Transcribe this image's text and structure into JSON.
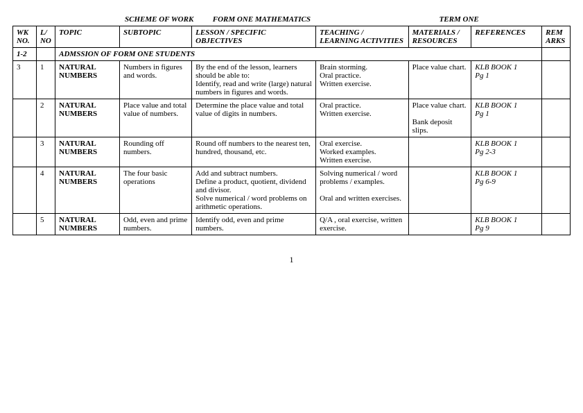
{
  "header": {
    "scheme_of_work": "SCHEME  OF  WORK",
    "form_one_math": "FORM  ONE  MATHEMATICS",
    "term_one": "TERM ONE"
  },
  "columns": {
    "wk_no": "WK NO.",
    "l_no": "L/ NO",
    "topic": "TOPIC",
    "subtopic": "SUBTOPIC",
    "objectives": "LESSON / SPECIFIC OBJECTIVES",
    "activities": "TEACHING / LEARNING ACTIVITIES",
    "materials": "MATERIALS / RESOURCES",
    "references": "REFERENCES",
    "remarks": "REMARKS"
  },
  "admission_row": {
    "wk": "1-2",
    "text": "ADMSSION  OF FORM ONE STUDENTS"
  },
  "rows": [
    {
      "wk": "3",
      "lno": "1",
      "topic": "NATURAL NUMBERS",
      "subtopic": "Numbers in figures and words.",
      "objectives": "By the end of the lesson, learners should be able to:\nIdentify, read and write (large) natural numbers in figures and words.",
      "activities": "Brain storming.\nOral practice.\nWritten exercise.",
      "materials": "Place value chart.",
      "references": "KLB BOOK 1\nPg 1",
      "remarks": ""
    },
    {
      "wk": "",
      "lno": "2",
      "topic": "NATURAL NUMBERS",
      "subtopic": "Place value and total value of numbers.",
      "objectives": "Determine the place value and total value of digits in numbers.",
      "activities": "Oral practice.\nWritten exercise.",
      "materials": "Place value chart.\n\nBank deposit slips.",
      "references": "KLB BOOK 1\nPg 1",
      "remarks": ""
    },
    {
      "wk": "",
      "lno": "3",
      "topic": "NATURAL NUMBERS",
      "subtopic": "Rounding off numbers.",
      "objectives": "Round off numbers to the nearest ten, hundred, thousand, etc.",
      "activities": "Oral exercise.\nWorked examples.\nWritten exercise.",
      "materials": "",
      "references": "KLB BOOK 1\nPg 2-3",
      "remarks": ""
    },
    {
      "wk": "",
      "lno": "4",
      "topic": "NATURAL NUMBERS",
      "subtopic": "The four basic operations",
      "objectives": "Add and subtract numbers.\nDefine a product, quotient, dividend and divisor.\nSolve numerical / word problems on arithmetic operations.",
      "activities": "Solving numerical / word problems / examples.\n\nOral and written exercises.",
      "materials": "",
      "references": "KLB BOOK 1\nPg 6-9",
      "remarks": ""
    },
    {
      "wk": "",
      "lno": "5",
      "topic": "NATURAL NUMBERS",
      "subtopic": "Odd, even and prime numbers.",
      "objectives": "Identify odd, even and prime numbers.",
      "activities": "Q/A , oral exercise, written exercise.",
      "materials": "",
      "references": "KLB BOOK 1\nPg 9",
      "remarks": ""
    }
  ],
  "page_number": "1",
  "widths": {
    "wk": "30px",
    "lno": "24px",
    "topic": "82px",
    "subtopic": "92px",
    "objectives": "158px",
    "activities": "118px",
    "materials": "80px",
    "references": "90px",
    "remarks": "36px"
  }
}
